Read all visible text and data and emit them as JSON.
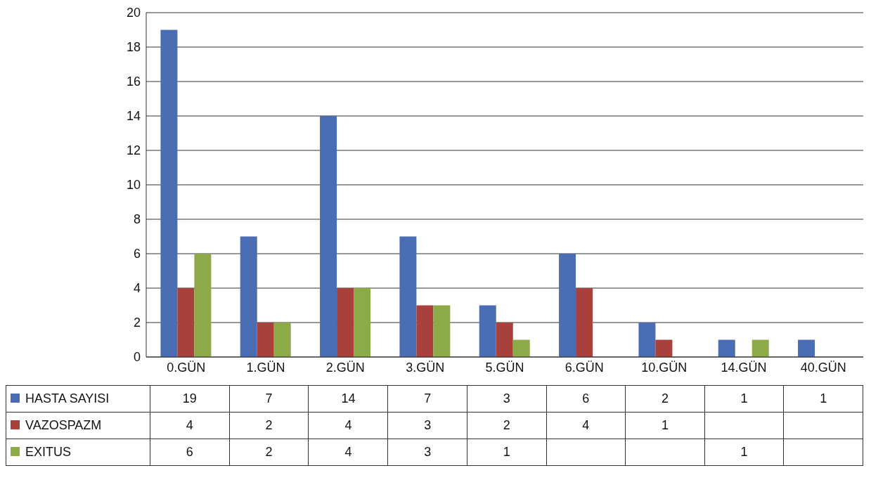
{
  "chart_data": {
    "type": "bar",
    "categories": [
      "0.GÜN",
      "1.GÜN",
      "2.GÜN",
      "3.GÜN",
      "5.GÜN",
      "6.GÜN",
      "10.GÜN",
      "14.GÜN",
      "40.GÜN"
    ],
    "series": [
      {
        "name": "HASTA SAYISI",
        "color": "#4a6db3",
        "values": [
          19,
          7,
          14,
          7,
          3,
          6,
          2,
          1,
          1
        ]
      },
      {
        "name": "VAZOSPAZM",
        "color": "#a8403c",
        "values": [
          4,
          2,
          4,
          3,
          2,
          4,
          1,
          null,
          null
        ]
      },
      {
        "name": "EXITUS",
        "color": "#8daa48",
        "values": [
          6,
          2,
          4,
          3,
          1,
          null,
          null,
          1,
          null
        ]
      }
    ],
    "ylim": [
      0,
      20
    ],
    "yticks": [
      0,
      2,
      4,
      6,
      8,
      10,
      12,
      14,
      16,
      18,
      20
    ],
    "grid": "y",
    "legend": "bottom",
    "data_labels": true
  }
}
